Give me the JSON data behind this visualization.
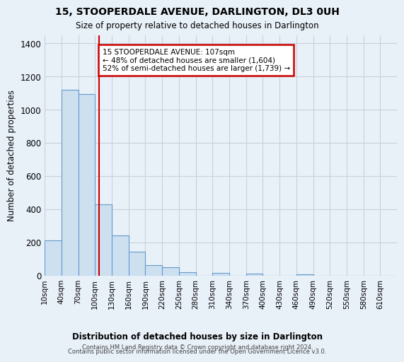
{
  "title": "15, STOOPERDALE AVENUE, DARLINGTON, DL3 0UH",
  "subtitle": "Size of property relative to detached houses in Darlington",
  "xlabel": "Distribution of detached houses by size in Darlington",
  "ylabel": "Number of detached properties",
  "bar_color": "#cce0f0",
  "bar_edge_color": "#6699cc",
  "annotation_box_text": "15 STOOPERDALE AVENUE: 107sqm\n← 48% of detached houses are smaller (1,604)\n52% of semi-detached houses are larger (1,739) →",
  "annotation_box_color": "#ffffff",
  "annotation_box_edge_color": "#cc0000",
  "annotation_line_color": "#cc0000",
  "footnote1": "Contains HM Land Registry data © Crown copyright and database right 2024.",
  "footnote2": "Contains public sector information licensed under the Open Government Licence v3.0.",
  "bins_left_edges": [
    10,
    40,
    70,
    100,
    130,
    160,
    190,
    220,
    250,
    280,
    310,
    340,
    370,
    400,
    430,
    460,
    490,
    520,
    550,
    580,
    610
  ],
  "bin_width": 30,
  "bar_heights": [
    210,
    1120,
    1095,
    430,
    240,
    143,
    60,
    47,
    20,
    0,
    15,
    0,
    10,
    0,
    0,
    8,
    0,
    0,
    0,
    0,
    0
  ],
  "ylim": [
    0,
    1450
  ],
  "yticks": [
    0,
    200,
    400,
    600,
    800,
    1000,
    1200,
    1400
  ],
  "tick_labels": [
    "10sqm",
    "40sqm",
    "70sqm",
    "100sqm",
    "130sqm",
    "160sqm",
    "190sqm",
    "220sqm",
    "250sqm",
    "280sqm",
    "310sqm",
    "340sqm",
    "370sqm",
    "400sqm",
    "430sqm",
    "460sqm",
    "490sqm",
    "520sqm",
    "550sqm",
    "580sqm",
    "610sqm"
  ],
  "background_color": "#e8f0f8",
  "grid_color": "#c8d0dc"
}
